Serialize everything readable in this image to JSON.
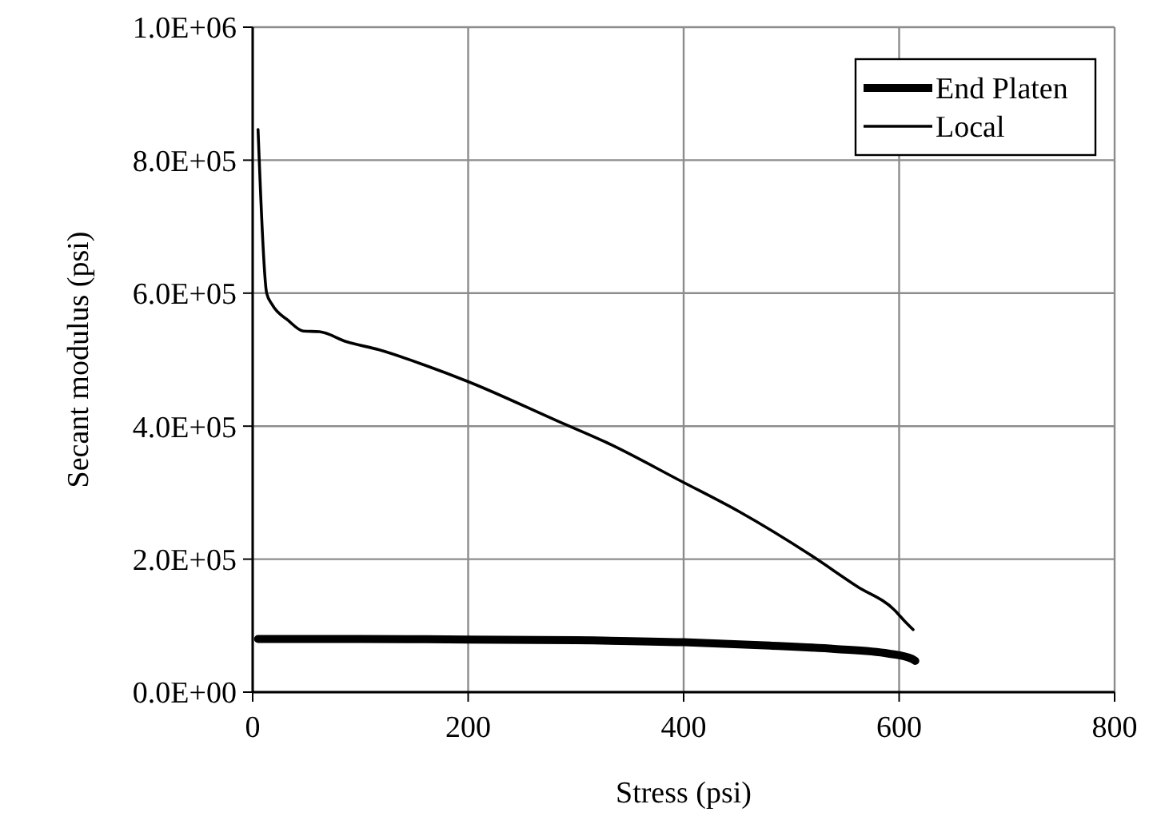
{
  "chart_data": {
    "type": "line",
    "xlabel": "Stress (psi)",
    "ylabel": "Secant modulus (psi)",
    "xlim": [
      0,
      800
    ],
    "xticks": [
      0,
      200,
      400,
      600,
      800
    ],
    "ylim": [
      0,
      1000000
    ],
    "yticks": [
      {
        "value": 0,
        "label": "0.0E+00"
      },
      {
        "value": 200000,
        "label": "2.0E+05"
      },
      {
        "value": 400000,
        "label": "4.0E+05"
      },
      {
        "value": 600000,
        "label": "6.0E+05"
      },
      {
        "value": 800000,
        "label": "8.0E+05"
      },
      {
        "value": 1000000,
        "label": "1.0E+06"
      }
    ],
    "grid": true,
    "legend": "top right",
    "marker": "none",
    "series": [
      {
        "name": "End Platen",
        "color": "#000000",
        "x": [
          5,
          100,
          200,
          300,
          400,
          480,
          540,
          590,
          612,
          615
        ],
        "values": [
          80000,
          80000,
          79000,
          78000,
          75000,
          70000,
          65000,
          58000,
          50000,
          47000
        ]
      },
      {
        "name": "Local",
        "color": "#000000",
        "x": [
          5,
          13,
          18,
          33,
          47,
          62,
          87,
          117,
          161,
          200,
          284,
          329,
          398,
          452,
          517,
          561,
          596,
          605,
          613
        ],
        "values": [
          846000,
          600000,
          583000,
          559000,
          543000,
          542000,
          527000,
          515000,
          491000,
          467000,
          407000,
          375000,
          317000,
          271000,
          207000,
          159000,
          123000,
          107000,
          94000
        ]
      }
    ]
  }
}
